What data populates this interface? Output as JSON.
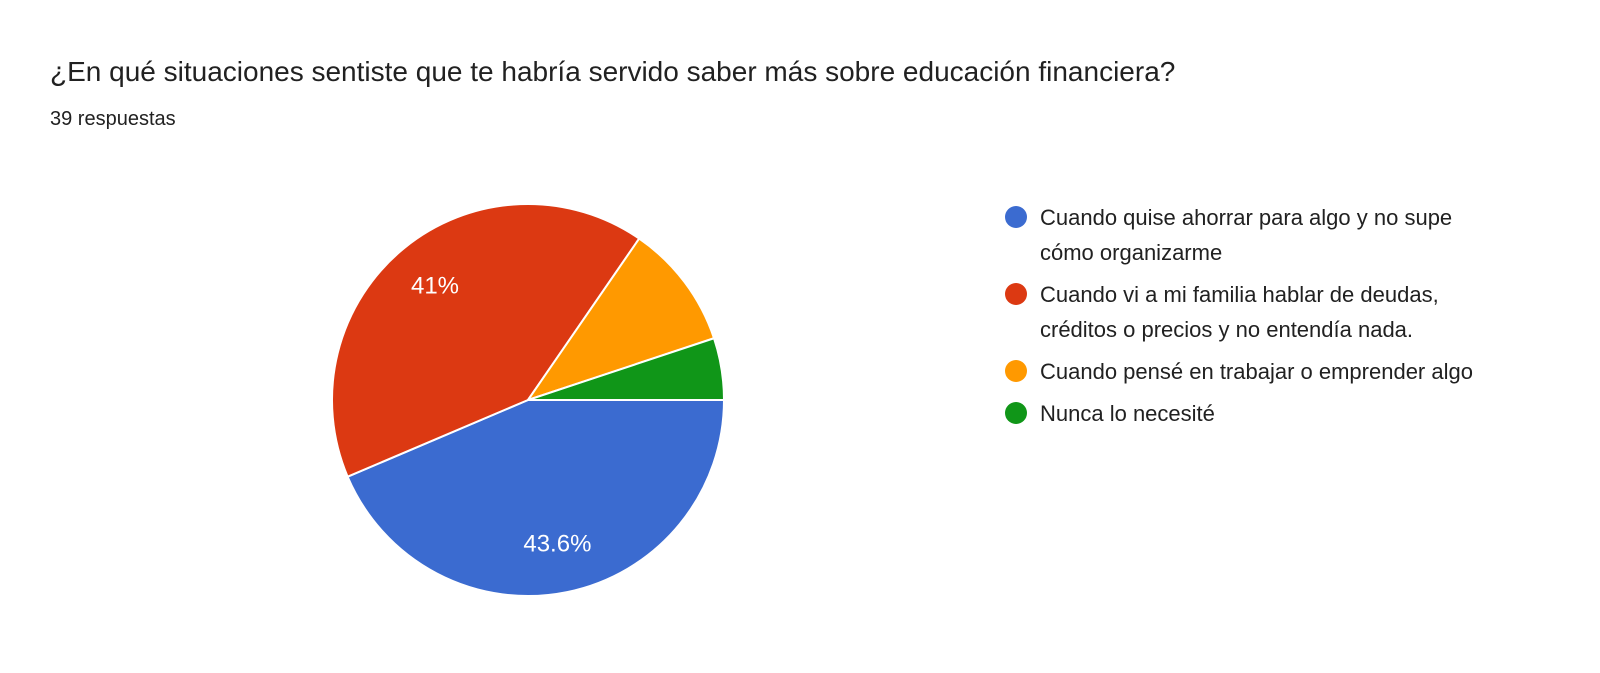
{
  "chart_data": {
    "type": "pie",
    "title": "¿En qué situaciones sentiste que te habría servido saber más sobre educación financiera?",
    "subtitle": "39 respuestas",
    "categories": [
      "Cuando quise ahorrar para algo y no supe cómo organizarme",
      "Cuando vi a mi familia hablar de deudas, créditos o precios y no entendía nada.",
      "Cuando pensé en trabajar o emprender algo",
      "Nunca lo necesité"
    ],
    "values": [
      43.6,
      41,
      10.3,
      5.1
    ],
    "unit": "percent",
    "slice_labels": [
      "43.6%",
      "41%",
      "",
      ""
    ],
    "colors": [
      "#3B6BD0",
      "#DC3912",
      "#FF9900",
      "#109618"
    ],
    "slice_border_color": "#FFFFFF",
    "data_label_color": "#FFFFFF",
    "text_color": "#212121",
    "background_color": "#FFFFFF",
    "legend_position": "right",
    "start_angle_deg": 0,
    "direction": "clockwise"
  }
}
